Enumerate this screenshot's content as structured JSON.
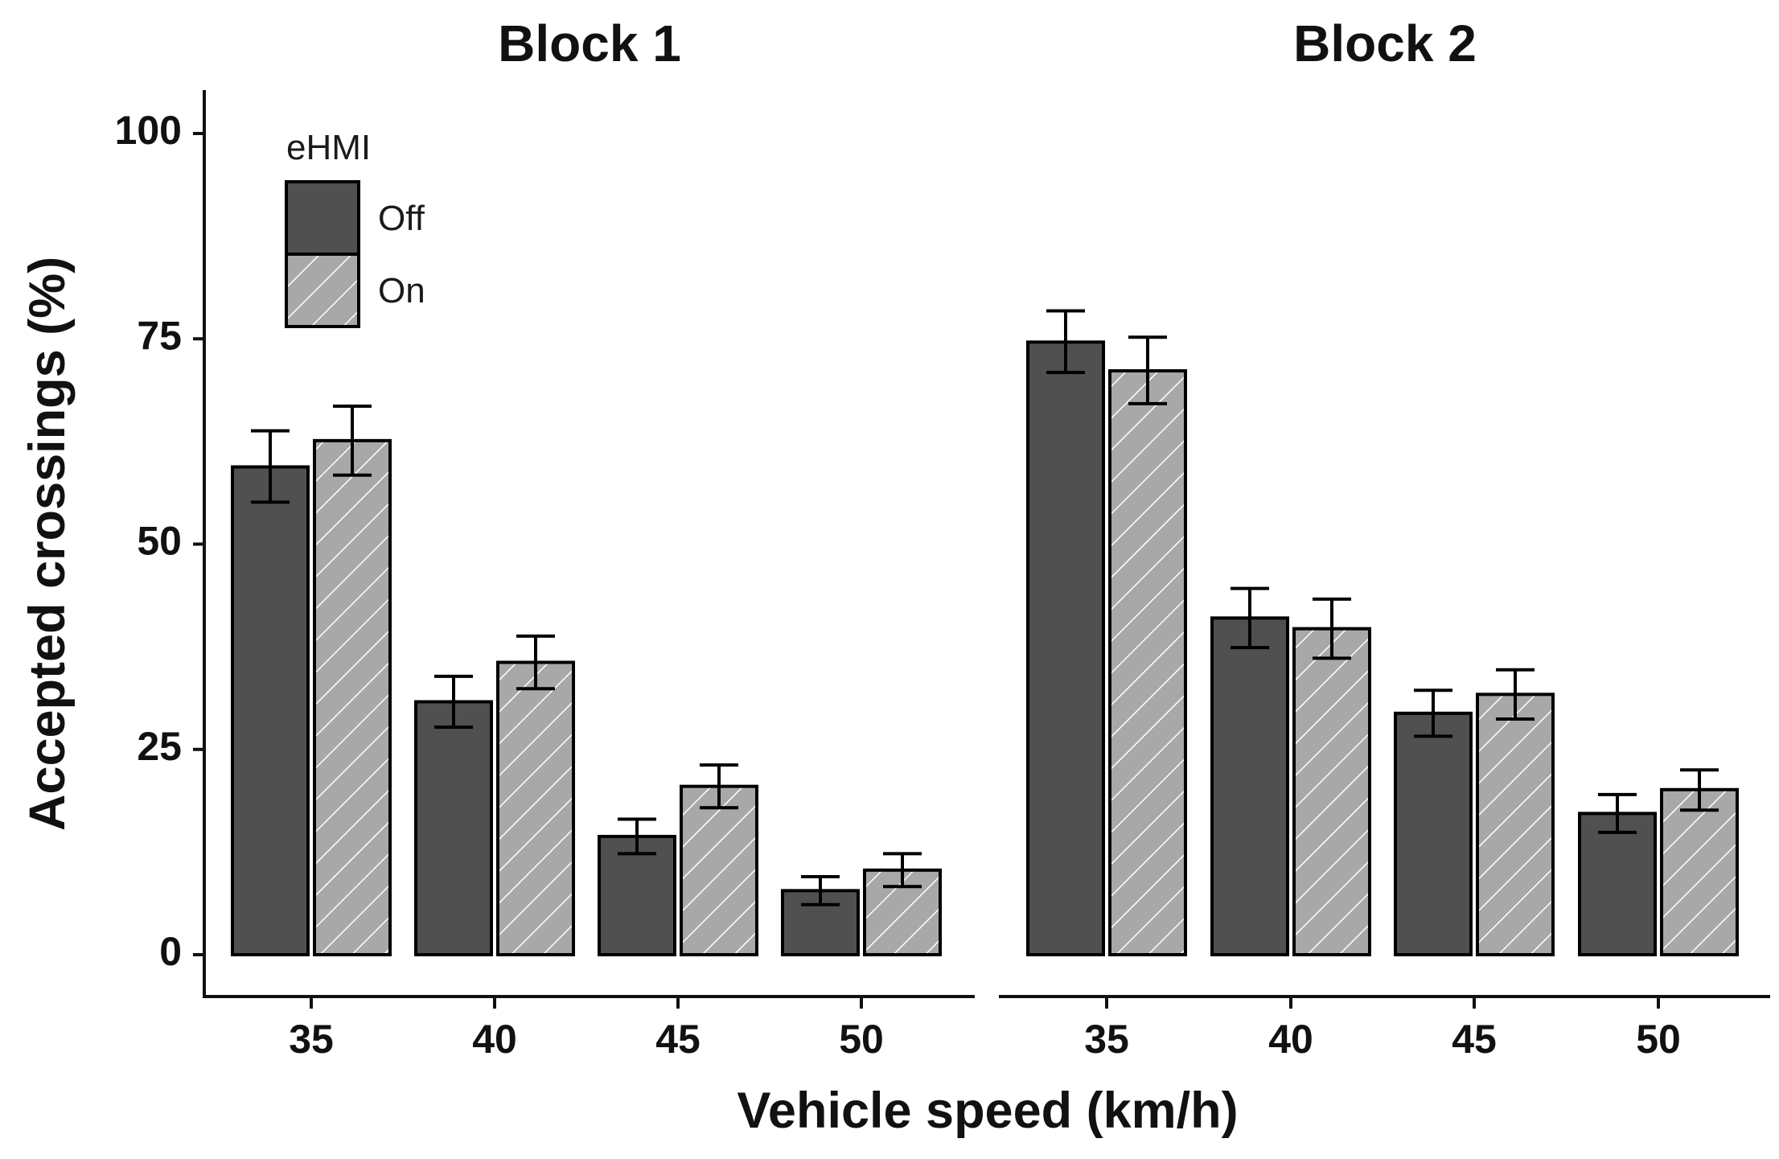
{
  "chart_data": {
    "type": "bar",
    "x_label": "Vehicle speed (km/h)",
    "y_label": "Accepted crossings (%)",
    "y_range": [
      0,
      100
    ],
    "y_ticks": [
      0,
      25,
      50,
      75,
      100
    ],
    "categories": [
      "35",
      "40",
      "45",
      "50"
    ],
    "legend": {
      "title": "eHMI",
      "placement": "top-left",
      "items": [
        {
          "name": "Off",
          "fill": "#505050",
          "pattern": "solid"
        },
        {
          "name": "On",
          "fill": "#a8a8a8",
          "pattern": "diagonal-hatch",
          "hatch_color": "#ffffff"
        }
      ]
    },
    "panels": [
      {
        "title": "Block 1",
        "series": [
          {
            "name": "Off",
            "values": [
              59.4,
              30.8,
              14.4,
              7.8
            ],
            "err_low": [
              55.1,
              27.7,
              12.3,
              6.1
            ],
            "err_high": [
              63.8,
              33.9,
              16.5,
              9.5
            ]
          },
          {
            "name": "On",
            "values": [
              62.6,
              35.6,
              20.5,
              10.3
            ],
            "err_low": [
              58.4,
              32.4,
              17.9,
              8.3
            ],
            "err_high": [
              66.8,
              38.8,
              23.1,
              12.3
            ]
          }
        ]
      },
      {
        "title": "Block 2",
        "series": [
          {
            "name": "Off",
            "values": [
              74.6,
              41.0,
              29.4,
              17.2
            ],
            "err_low": [
              70.9,
              37.4,
              26.6,
              14.9
            ],
            "err_high": [
              78.4,
              44.6,
              32.2,
              19.5
            ]
          },
          {
            "name": "On",
            "values": [
              71.1,
              39.7,
              31.7,
              20.1
            ],
            "err_low": [
              67.1,
              36.1,
              28.7,
              17.6
            ],
            "err_high": [
              75.2,
              43.3,
              34.7,
              22.5
            ]
          }
        ]
      }
    ]
  }
}
